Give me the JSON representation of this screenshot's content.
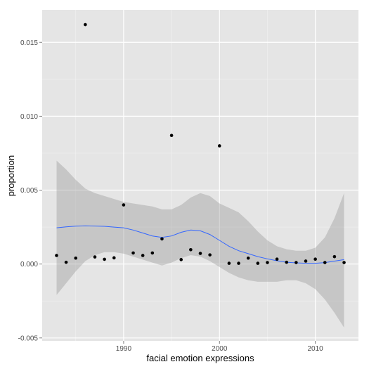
{
  "chart_data": {
    "type": "scatter",
    "title": "",
    "xlabel": "facial emotion expressions",
    "ylabel": "proportion",
    "xlim": [
      1981.5,
      2014.5
    ],
    "ylim": [
      -0.0052,
      0.0172
    ],
    "x_ticks": [
      1990,
      2000,
      2010
    ],
    "x_tick_labels": [
      "1990",
      "2000",
      "2010"
    ],
    "y_ticks": [
      -0.005,
      0.0,
      0.005,
      0.01,
      0.015
    ],
    "y_tick_labels": [
      "-0.005",
      "0.000",
      "0.005",
      "0.010",
      "0.015"
    ],
    "grid": true,
    "points": {
      "x": [
        1983,
        1984,
        1985,
        1986,
        1987,
        1988,
        1989,
        1990,
        1991,
        1992,
        1993,
        1994,
        1995,
        1996,
        1997,
        1998,
        1999,
        2000,
        2001,
        2002,
        2003,
        2004,
        2005,
        2006,
        2007,
        2008,
        2009,
        2010,
        2011,
        2012,
        2013
      ],
      "y": [
        0.00058,
        0.00012,
        0.0004,
        0.0162,
        0.00048,
        0.00032,
        0.00042,
        0.004,
        0.00075,
        0.00058,
        0.00075,
        0.0017,
        0.0087,
        0.0003,
        0.00097,
        0.00072,
        0.00062,
        0.008,
        5e-05,
        5e-05,
        0.0004,
        5e-05,
        0.0001,
        0.00033,
        0.00012,
        0.0001,
        0.0002,
        0.00033,
        0.0001,
        0.0005,
        0.0001
      ]
    },
    "smooth": {
      "x": [
        1983,
        1984,
        1985,
        1986,
        1987,
        1988,
        1989,
        1990,
        1991,
        1992,
        1993,
        1994,
        1995,
        1996,
        1997,
        1998,
        1999,
        2000,
        2001,
        2002,
        2003,
        2004,
        2005,
        2006,
        2007,
        2008,
        2009,
        2010,
        2011,
        2012,
        2013
      ],
      "y": [
        0.00245,
        0.00252,
        0.00256,
        0.00258,
        0.00257,
        0.00255,
        0.0025,
        0.00245,
        0.0023,
        0.0021,
        0.0019,
        0.0018,
        0.0019,
        0.00215,
        0.0023,
        0.00225,
        0.002,
        0.0016,
        0.0012,
        0.0009,
        0.0007,
        0.0005,
        0.00035,
        0.00022,
        0.00012,
        8e-05,
        5e-05,
        5e-05,
        0.0001,
        0.0002,
        0.0003
      ],
      "lower": [
        -0.0021,
        -0.0013,
        -0.0005,
        0.0002,
        0.0006,
        0.0008,
        0.0008,
        0.0007,
        0.0005,
        0.0003,
        0.0001,
        -0.0001,
        0.0001,
        0.0004,
        0.0006,
        0.0005,
        0.0002,
        -0.0002,
        -0.0006,
        -0.0009,
        -0.0011,
        -0.0012,
        -0.0012,
        -0.0012,
        -0.0011,
        -0.0011,
        -0.0013,
        -0.0017,
        -0.0024,
        -0.0033,
        -0.0043
      ],
      "upper": [
        0.007,
        0.0064,
        0.0057,
        0.0051,
        0.0048,
        0.0046,
        0.0044,
        0.0042,
        0.0041,
        0.004,
        0.0039,
        0.0037,
        0.0037,
        0.004,
        0.0045,
        0.0048,
        0.0046,
        0.0041,
        0.0038,
        0.0035,
        0.0029,
        0.0022,
        0.0016,
        0.0012,
        0.001,
        0.0009,
        0.0009,
        0.0011,
        0.0018,
        0.0031,
        0.0048
      ]
    },
    "colors": {
      "panel": "#e5e5e5",
      "grid_major": "#ffffff",
      "grid_minor": "#f2f2f2",
      "point": "#000000",
      "line": "#3366ff",
      "ribbon": "#999999"
    }
  }
}
